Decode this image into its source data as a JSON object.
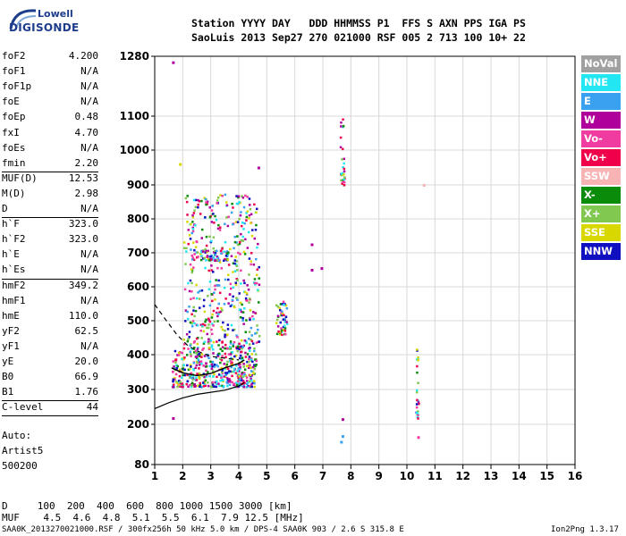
{
  "logo": {
    "top": "Lowell",
    "bottom": "DIGISONDE"
  },
  "header": {
    "line1": "Station YYYY DAY   DDD HHMMSS P1  FFS S AXN PPS IGA PS",
    "line2": "SaoLuis 2013 Sep27 270 021000 RSF 005 2 713 100 10+ 22"
  },
  "params": [
    {
      "k": "foF2",
      "v": "4.200"
    },
    {
      "k": "foF1",
      "v": "N/A"
    },
    {
      "k": "foF1p",
      "v": "N/A"
    },
    {
      "k": "foE",
      "v": "N/A"
    },
    {
      "k": "foEp",
      "v": "0.48"
    },
    {
      "k": "fxI",
      "v": "4.70"
    },
    {
      "k": "foEs",
      "v": "N/A"
    },
    {
      "k": "fmin",
      "v": "2.20"
    },
    {
      "k": "MUF(D)",
      "v": "12.53"
    },
    {
      "k": "M(D)",
      "v": "2.98"
    },
    {
      "k": "D",
      "v": "N/A"
    },
    {
      "k": "h`F",
      "v": "323.0"
    },
    {
      "k": "h`F2",
      "v": "323.0"
    },
    {
      "k": "h`E",
      "v": "N/A"
    },
    {
      "k": "h`Es",
      "v": "N/A"
    },
    {
      "k": "hmF2",
      "v": "349.2"
    },
    {
      "k": "hmF1",
      "v": "N/A"
    },
    {
      "k": "hmE",
      "v": "110.0"
    },
    {
      "k": "yF2",
      "v": "62.5"
    },
    {
      "k": "yF1",
      "v": "N/A"
    },
    {
      "k": "yE",
      "v": "20.0"
    },
    {
      "k": "B0",
      "v": "66.9"
    },
    {
      "k": "B1",
      "v": "1.76"
    },
    {
      "k": "C-level",
      "v": "44"
    }
  ],
  "auto": {
    "line1": "Auto:",
    "line2": "Artist5",
    "line3": "500200"
  },
  "legend": [
    {
      "label": "NoVal",
      "color": "#a0a0a0"
    },
    {
      "label": "NNE",
      "color": "#22e6f2"
    },
    {
      "label": "E",
      "color": "#3aa0f0"
    },
    {
      "label": "W",
      "color": "#b0009c"
    },
    {
      "label": "Vo-",
      "color": "#f03ca0"
    },
    {
      "label": "Vo+",
      "color": "#f0004a"
    },
    {
      "label": "SSW",
      "color": "#f8b4b4"
    },
    {
      "label": "X-",
      "color": "#0a8c0a"
    },
    {
      "label": "X+",
      "color": "#80c850"
    },
    {
      "label": "SSE",
      "color": "#d8d800"
    },
    {
      "label": "NNW",
      "color": "#1010c0"
    }
  ],
  "bottom": {
    "line1": "D     100  200  400  600  800 1000 1500 3000 [km]",
    "line2": "MUF    4.5  4.6  4.8  5.1  5.5  6.1  7.9 12.5 [MHz]"
  },
  "footer": {
    "left": "SAA0K_2013270021000.RSF / 300fx256h 50 kHz 5.0 km / DPS-4 SAA0K 903 / 2.6 S 315.8 E",
    "right": "Ion2Png 1.3.17"
  },
  "chart_data": {
    "type": "scatter",
    "xlim": [
      1,
      16
    ],
    "ylim": [
      80,
      1280
    ],
    "x_ticks": [
      "1",
      "2",
      "3",
      "4",
      "5",
      "6",
      "7",
      "8",
      "9",
      "10",
      "11",
      "12",
      "13",
      "14",
      "15",
      "16"
    ],
    "y_ticks": [
      "80",
      "200",
      "300",
      "400",
      "500",
      "600",
      "700",
      "800",
      "900",
      "1000",
      "1100",
      "1280"
    ],
    "y_tick_values": [
      80,
      200,
      300,
      400,
      500,
      600,
      700,
      800,
      900,
      1000,
      1100,
      1280
    ],
    "grid": true,
    "profile_curve": [
      [
        1.0,
        245
      ],
      [
        1.5,
        262
      ],
      [
        2.0,
        276
      ],
      [
        2.5,
        286
      ],
      [
        3.0,
        292
      ],
      [
        3.5,
        298
      ],
      [
        4.0,
        310
      ],
      [
        4.2,
        320
      ]
    ],
    "dashed_curve": [
      [
        1.0,
        548
      ],
      [
        1.4,
        502
      ],
      [
        1.8,
        458
      ],
      [
        2.2,
        425
      ],
      [
        2.6,
        408
      ],
      [
        3.0,
        395
      ],
      [
        3.5,
        390
      ],
      [
        4.0,
        385
      ]
    ],
    "solid_trace": [
      [
        1.6,
        362
      ],
      [
        2.0,
        348
      ],
      [
        2.5,
        340
      ],
      [
        3.0,
        346
      ],
      [
        3.5,
        362
      ],
      [
        4.0,
        375
      ],
      [
        4.2,
        385
      ]
    ],
    "clusters": [
      {
        "x": [
          1.6,
          4.6
        ],
        "y": [
          310,
          420
        ],
        "n": 420
      },
      {
        "x": [
          2.0,
          4.7
        ],
        "y": [
          420,
          880
        ],
        "n": 480
      },
      {
        "x": [
          2.3,
          3.6
        ],
        "y": [
          680,
          710
        ],
        "n": 60
      },
      {
        "x": [
          5.3,
          5.7
        ],
        "y": [
          460,
          560
        ],
        "n": 50
      },
      {
        "x": [
          7.6,
          7.75
        ],
        "y": [
          900,
          1100
        ],
        "n": 30
      },
      {
        "x": [
          10.3,
          10.4
        ],
        "y": [
          220,
          430
        ],
        "n": 25
      }
    ],
    "points": [
      {
        "x": 1.65,
        "y": 1262,
        "s": "W"
      },
      {
        "x": 1.65,
        "y": 218,
        "s": "W"
      },
      {
        "x": 1.9,
        "y": 960,
        "s": "SSE"
      },
      {
        "x": 4.7,
        "y": 950,
        "s": "W"
      },
      {
        "x": 6.6,
        "y": 725,
        "s": "W"
      },
      {
        "x": 6.6,
        "y": 650,
        "s": "W"
      },
      {
        "x": 6.95,
        "y": 655,
        "s": "W"
      },
      {
        "x": 7.7,
        "y": 215,
        "s": "W"
      },
      {
        "x": 7.7,
        "y": 165,
        "s": "E"
      },
      {
        "x": 7.65,
        "y": 148,
        "s": "E"
      },
      {
        "x": 10.4,
        "y": 162,
        "s": "Vo-"
      },
      {
        "x": 10.6,
        "y": 900,
        "s": "SSW"
      }
    ]
  }
}
